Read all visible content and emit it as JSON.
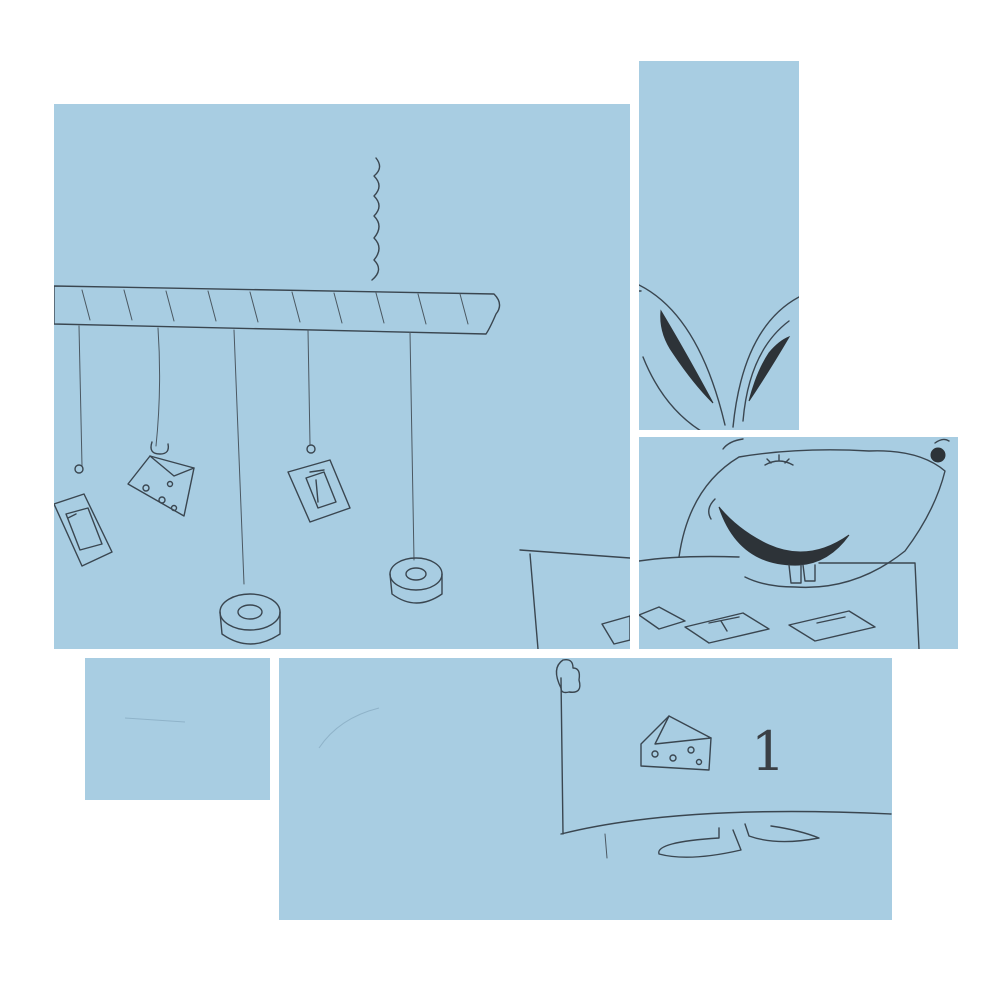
{
  "scene": {
    "background": "#ffffff",
    "paper_color": "#a8cde2",
    "pencil_color": "#3a4650"
  },
  "sign": {
    "number": "1"
  },
  "icons": [
    "hook-icon",
    "cheese-icon",
    "mousetrap-icon",
    "tape-roll-icon",
    "mouse-icon"
  ]
}
